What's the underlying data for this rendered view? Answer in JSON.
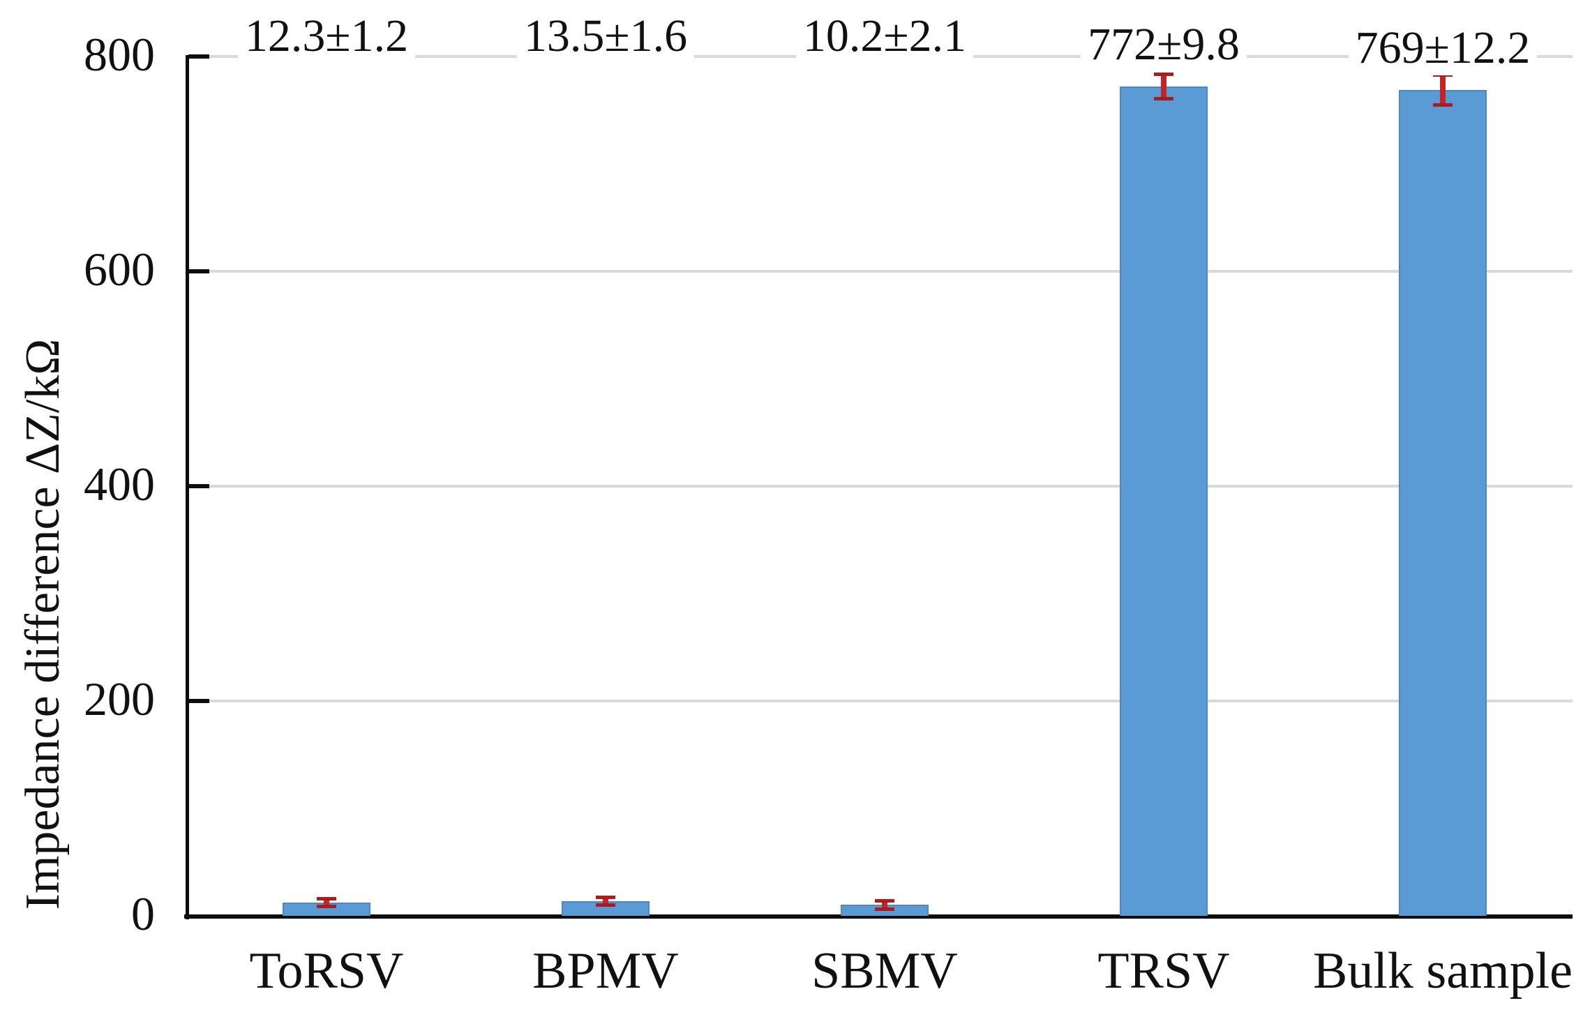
{
  "figure": {
    "background": "#ffffff",
    "bar_fill": "#5b9bd5",
    "bar_border": "#4f87be",
    "error_color": "#c22525",
    "error_cap_color": "#a81e1e",
    "gridline_color": "#d9d9d9",
    "axis_color": "#0d0d0d",
    "text_color": "#111111"
  },
  "chart_data": {
    "type": "bar",
    "title": "",
    "xlabel": "",
    "ylabel": "Impedance difference ΔZ/kΩ",
    "categories": [
      "ToRSV",
      "BPMV",
      "SBMV",
      "TRSV",
      "Bulk sample"
    ],
    "values": [
      12.3,
      13.5,
      10.2,
      772,
      769
    ],
    "errors": [
      1.2,
      1.6,
      2.1,
      9.8,
      12.2
    ],
    "data_labels": [
      "12.3±1.2",
      "13.5±1.6",
      "10.2±2.1",
      "772±9.8",
      "769±12.2"
    ],
    "y_ticks": [
      0,
      200,
      400,
      600,
      800
    ],
    "ylim": [
      0,
      800
    ],
    "grid": true,
    "legend": false,
    "series_color": "#5b9bd5",
    "error_bar_color": "#c22525"
  }
}
